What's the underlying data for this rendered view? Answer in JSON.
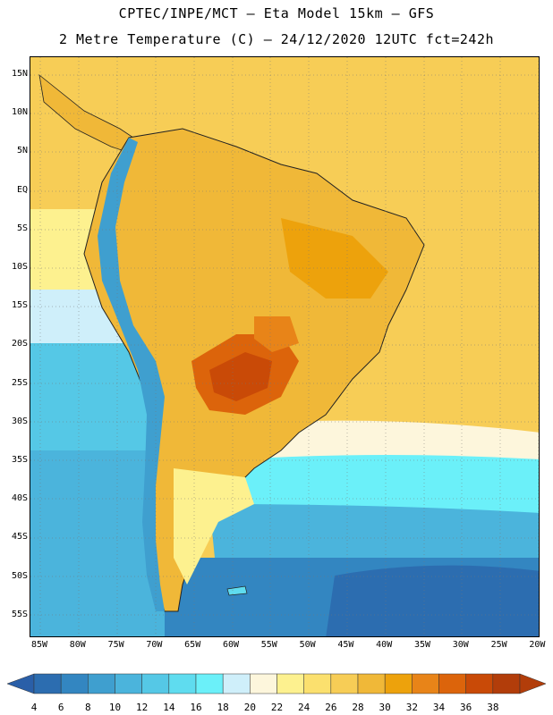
{
  "header": {
    "line1": "CPTEC/INPE/MCT –  Eta Model 15km – GFS",
    "line2": "2 Metre Temperature (C) – 24/12/2020 12UTC fct=242h"
  },
  "axes": {
    "latitudes": [
      "15N",
      "10N",
      "5N",
      "EQ",
      "5S",
      "10S",
      "15S",
      "20S",
      "25S",
      "30S",
      "35S",
      "40S",
      "45S",
      "50S",
      "55S"
    ],
    "longitudes": [
      "85W",
      "80W",
      "75W",
      "70W",
      "65W",
      "60W",
      "55W",
      "50W",
      "45W",
      "40W",
      "35W",
      "30W",
      "25W",
      "20W"
    ]
  },
  "colorbar": {
    "ticks": [
      "4",
      "6",
      "8",
      "10",
      "12",
      "14",
      "16",
      "18",
      "20",
      "22",
      "24",
      "26",
      "28",
      "30",
      "32",
      "34",
      "36",
      "38"
    ],
    "colors": [
      "#2c6db0",
      "#3386c1",
      "#3f9fcf",
      "#4bb4dc",
      "#55c8e6",
      "#5fdcef",
      "#6bf0f9",
      "#cfeffa",
      "#fdf6dc",
      "#fdf18f",
      "#fbe06e",
      "#f7cd56",
      "#f0b838",
      "#eda20c",
      "#e88418",
      "#dc640b",
      "#c94a07",
      "#b23d0a"
    ],
    "left_arrow_color": "#2a5fa8",
    "right_arrow_color": "#b23d0a"
  },
  "map": {
    "ocean_warm": "#f7cd56",
    "ocean_cool": "#55c8e6",
    "ocean_cold": "#2c6db0",
    "land_hot": "#c94a07",
    "land_warm": "#eda20c",
    "andes_cold": "#3f9fcf"
  }
}
